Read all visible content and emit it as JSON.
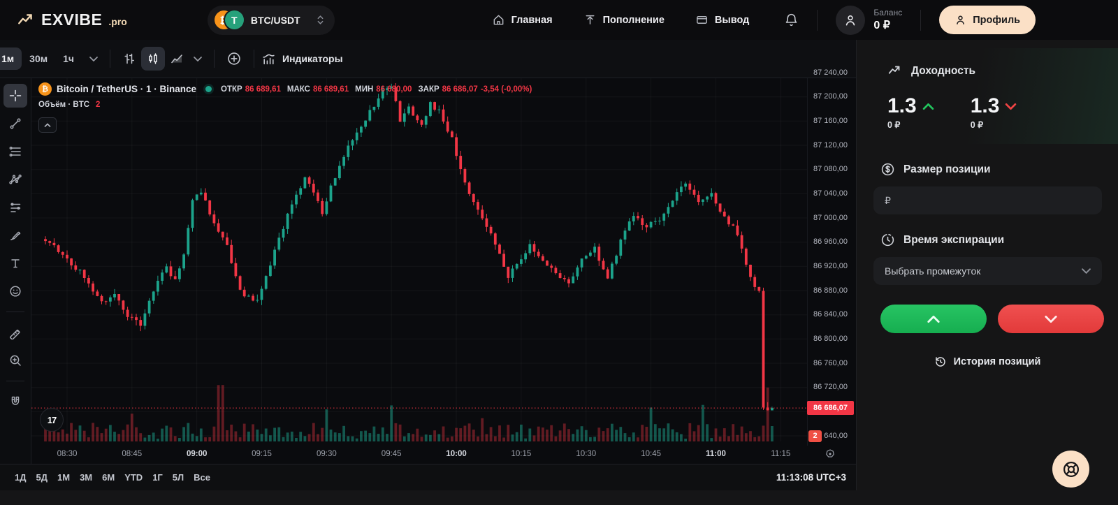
{
  "header": {
    "logo": {
      "name": "EXVIBE",
      "suffix": ".pro"
    },
    "pair_selector": {
      "label": "BTC/USDT",
      "coins": [
        "BTC",
        "USDT"
      ]
    },
    "nav": [
      {
        "id": "home",
        "label": "Главная"
      },
      {
        "id": "deposit",
        "label": "Пополнение"
      },
      {
        "id": "withdraw",
        "label": "Вывод"
      }
    ],
    "balance": {
      "label": "Баланс",
      "value": "0 ₽"
    },
    "profile_label": "Профиль"
  },
  "chart_toolbar": {
    "timeframes": [
      {
        "label": "1м",
        "active": true
      },
      {
        "label": "30м",
        "active": false
      },
      {
        "label": "1ч",
        "active": false
      }
    ],
    "chart_types": [
      {
        "id": "bars",
        "active": false
      },
      {
        "id": "candles",
        "active": true
      },
      {
        "id": "area",
        "active": false
      }
    ],
    "indicators_label": "Индикаторы"
  },
  "tool_rail": [
    {
      "id": "crosshair",
      "active": true
    },
    {
      "id": "trend-line",
      "active": false
    },
    {
      "id": "fib-retracement",
      "active": false
    },
    {
      "id": "xabcd-pattern",
      "active": false
    },
    {
      "id": "long-position",
      "active": false
    },
    {
      "id": "brush",
      "active": false
    },
    {
      "id": "text",
      "active": false
    },
    {
      "id": "emoji",
      "active": false
    },
    {
      "id": "divider",
      "active": false
    },
    {
      "id": "ruler",
      "active": false
    },
    {
      "id": "zoom-in",
      "active": false
    },
    {
      "id": "divider",
      "active": false
    },
    {
      "id": "magnet",
      "active": false
    }
  ],
  "legend": {
    "title": "Bitcoin / TetherUS · 1 · Binance",
    "open_label": "ОТКР",
    "open": "86 689,61",
    "high_label": "МАКС",
    "high": "86 689,61",
    "low_label": "МИН",
    "low": "86 680,00",
    "close_label": "ЗАКР",
    "close": "86 686,07",
    "change": "-3,54 (-0,00%)",
    "volume_label": "Объём · BTC",
    "volume_value": "2"
  },
  "chart_data": {
    "type": "candlestick",
    "title": "Bitcoin / TetherUS · 1 · Binance",
    "symbol": "BTC/USDT",
    "exchange": "Binance",
    "interval_minutes": 1,
    "last_candle": {
      "open": 86689.61,
      "high": 86689.61,
      "low": 86680.0,
      "close": 86686.07,
      "change": -3.54,
      "change_pct": -0.0,
      "volume_btc": 2
    },
    "current_price": 86686.07,
    "y_axis": {
      "min": 86640,
      "max": 87240,
      "step": 40,
      "ticks": [
        87240,
        87200,
        87160,
        87120,
        87080,
        87040,
        87000,
        86960,
        86920,
        86880,
        86840,
        86800,
        86760,
        86720,
        86680,
        86640
      ]
    },
    "x_axis": {
      "start": "08:25",
      "end": "11:13",
      "labels": [
        "08:30",
        "08:45",
        "09:00",
        "09:15",
        "09:30",
        "09:45",
        "10:00",
        "10:15",
        "10:30",
        "10:45",
        "11:00",
        "11:15"
      ],
      "bold": [
        "09:00",
        "10:00",
        "11:00"
      ]
    },
    "price_path": [
      [
        0,
        86965
      ],
      [
        3,
        86955
      ],
      [
        6,
        86930
      ],
      [
        10,
        86905
      ],
      [
        14,
        86860
      ],
      [
        17,
        86875
      ],
      [
        20,
        86840
      ],
      [
        23,
        86825
      ],
      [
        26,
        86880
      ],
      [
        29,
        86920
      ],
      [
        31,
        86895
      ],
      [
        33,
        86940
      ],
      [
        35,
        87030
      ],
      [
        37,
        87045
      ],
      [
        40,
        86990
      ],
      [
        43,
        86955
      ],
      [
        45,
        86900
      ],
      [
        47,
        86870
      ],
      [
        50,
        86865
      ],
      [
        53,
        86925
      ],
      [
        56,
        86985
      ],
      [
        59,
        87040
      ],
      [
        61,
        87065
      ],
      [
        63,
        87040
      ],
      [
        65,
        87010
      ],
      [
        67,
        87050
      ],
      [
        70,
        87105
      ],
      [
        73,
        87145
      ],
      [
        76,
        87175
      ],
      [
        79,
        87210
      ],
      [
        81,
        87220
      ],
      [
        83,
        87160
      ],
      [
        85,
        87185
      ],
      [
        88,
        87150
      ],
      [
        90,
        87190
      ],
      [
        92,
        87175
      ],
      [
        95,
        87130
      ],
      [
        98,
        87060
      ],
      [
        101,
        87010
      ],
      [
        104,
        86975
      ],
      [
        106,
        86940
      ],
      [
        108,
        86905
      ],
      [
        110,
        86925
      ],
      [
        113,
        86955
      ],
      [
        116,
        86930
      ],
      [
        119,
        86910
      ],
      [
        122,
        86890
      ],
      [
        125,
        86930
      ],
      [
        128,
        86950
      ],
      [
        131,
        86900
      ],
      [
        134,
        86960
      ],
      [
        137,
        87005
      ],
      [
        140,
        86985
      ],
      [
        143,
        87000
      ],
      [
        146,
        87030
      ],
      [
        149,
        87060
      ],
      [
        152,
        87030
      ],
      [
        155,
        87040
      ],
      [
        158,
        87000
      ],
      [
        161,
        86975
      ],
      [
        163,
        86920
      ],
      [
        165,
        86890
      ],
      [
        166,
        86880
      ],
      [
        167,
        86690
      ],
      [
        168,
        86686.07
      ]
    ],
    "volume": {
      "unit": "BTC",
      "spikes": [
        [
          20,
          2.8
        ],
        [
          40,
          8
        ],
        [
          41,
          4.2
        ],
        [
          65,
          4
        ],
        [
          80,
          3.5
        ],
        [
          101,
          2.7
        ],
        [
          140,
          3
        ],
        [
          152,
          2.5
        ],
        [
          167,
          4.7
        ]
      ],
      "last_value": 2
    },
    "colors": {
      "up": "#1ca38b",
      "down": "#f23645",
      "vol_up": "rgba(28,163,139,0.5)",
      "vol_down": "rgba(242,54,69,0.38)",
      "grid": "rgba(255,255,255,0.045)"
    }
  },
  "bottom_bar": {
    "ranges": [
      "1Д",
      "5Д",
      "1М",
      "3М",
      "6М",
      "YTD",
      "1Г",
      "5Л",
      "Все"
    ],
    "clock": "11:13:08 UTC+3"
  },
  "sidebar": {
    "profit": {
      "title": "Доходность",
      "up": {
        "value": "1.3",
        "sub": "0 ₽"
      },
      "down": {
        "value": "1.3",
        "sub": "0 ₽"
      }
    },
    "position": {
      "title": "Размер позиции",
      "placeholder": "₽"
    },
    "expiry": {
      "title": "Время экспирации",
      "placeholder": "Выбрать промежуток"
    },
    "history_label": "История позиций"
  },
  "colors": {
    "accent_cream": "#fbe0c6",
    "buy_green": "#1fbd5c",
    "sell_red": "#e84040",
    "price_red": "#f23645"
  }
}
